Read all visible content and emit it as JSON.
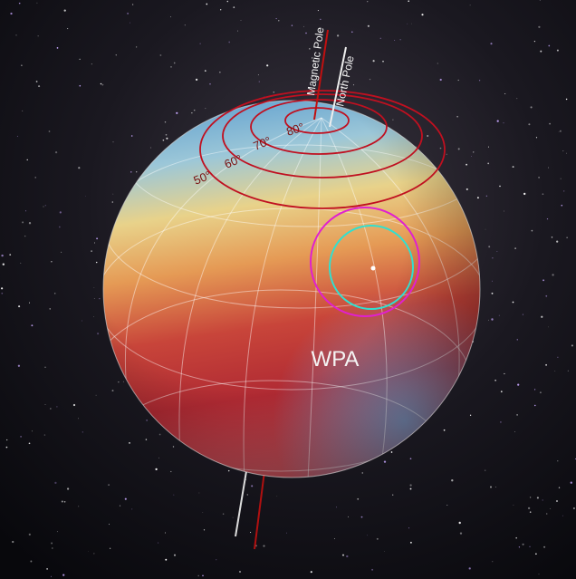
{
  "labels": {
    "magnetic_pole": "Magnetic Pole",
    "north_pole": "North Pole",
    "latitudes": [
      "80°",
      "70°",
      "60°",
      "50°"
    ],
    "region": "WPA"
  }
}
